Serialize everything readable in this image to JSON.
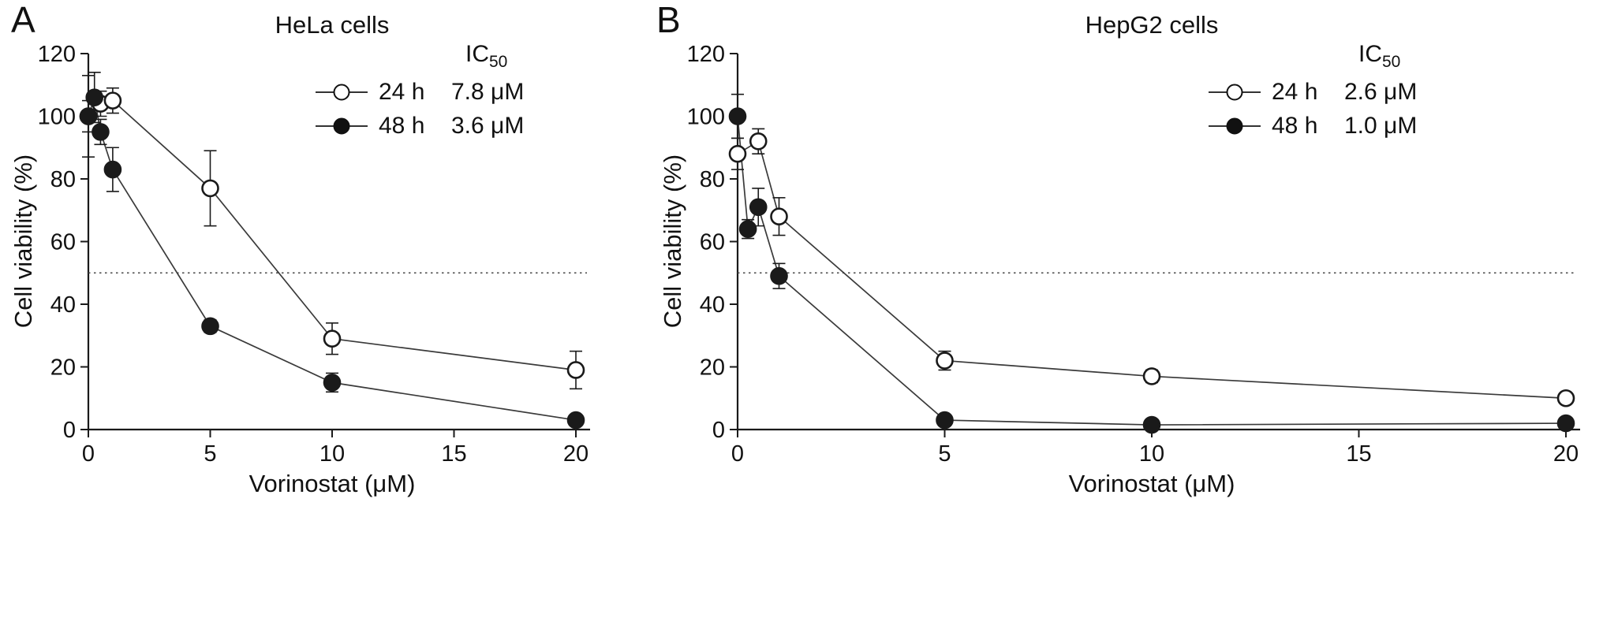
{
  "chart_data": [
    {
      "type": "line",
      "panel_label": "A",
      "title": "HeLa cells",
      "xlabel": "Vorinostat (μM)",
      "ylabel": "Cell viability (%)",
      "xlim": [
        0,
        20
      ],
      "ylim": [
        0,
        120
      ],
      "xticks": [
        0,
        5,
        10,
        15,
        20
      ],
      "yticks": [
        0,
        20,
        40,
        60,
        80,
        100,
        120
      ],
      "grid": "off",
      "reference_line": {
        "y": 50,
        "style": "dotted"
      },
      "legend": {
        "header_base": "IC",
        "header_sub": "50",
        "position": "top-right"
      },
      "ink_color": "#1a1a1a",
      "series": [
        {
          "name": "24 h",
          "ic50": "7.8 μM",
          "marker": "open-circle",
          "x": [
            0,
            0.5,
            1,
            5,
            10,
            20
          ],
          "y": [
            100,
            104,
            105,
            77,
            29,
            19
          ],
          "yerr": [
            13,
            4,
            4,
            12,
            5,
            6
          ]
        },
        {
          "name": "48 h",
          "ic50": "3.6 μM",
          "marker": "filled-circle",
          "x": [
            0,
            0.25,
            0.5,
            1,
            5,
            10,
            20
          ],
          "y": [
            100,
            106,
            95,
            83,
            33,
            15,
            3
          ],
          "yerr": [
            5,
            8,
            4,
            7,
            2,
            3,
            1.5
          ]
        }
      ]
    },
    {
      "type": "line",
      "panel_label": "B",
      "title": "HepG2 cells",
      "xlabel": "Vorinostat (μM)",
      "ylabel": "Cell viability (%)",
      "xlim": [
        0,
        20
      ],
      "ylim": [
        0,
        120
      ],
      "xticks": [
        0,
        5,
        10,
        15,
        20
      ],
      "yticks": [
        0,
        20,
        40,
        60,
        80,
        100,
        120
      ],
      "grid": "off",
      "reference_line": {
        "y": 50,
        "style": "dotted"
      },
      "legend": {
        "header_base": "IC",
        "header_sub": "50",
        "position": "top-right"
      },
      "ink_color": "#1a1a1a",
      "series": [
        {
          "name": "24 h",
          "ic50": "2.6 μM",
          "marker": "open-circle",
          "x": [
            0,
            0.5,
            1,
            5,
            10,
            20
          ],
          "y": [
            88,
            92,
            68,
            22,
            17,
            10
          ],
          "yerr": [
            5,
            4,
            6,
            3,
            2,
            1.5
          ]
        },
        {
          "name": "48 h",
          "ic50": "1.0 μM",
          "marker": "filled-circle",
          "x": [
            0,
            0.25,
            0.5,
            1,
            5,
            10,
            20
          ],
          "y": [
            100,
            64,
            71,
            49,
            3,
            1.5,
            2
          ],
          "yerr": [
            7,
            3,
            6,
            4,
            1.5,
            1,
            1
          ]
        }
      ]
    }
  ]
}
